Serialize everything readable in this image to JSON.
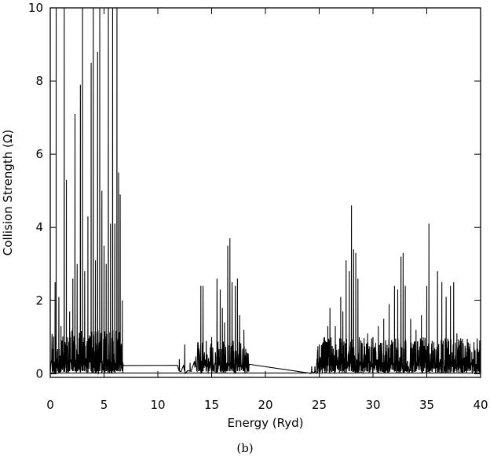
{
  "chart_data": {
    "type": "line",
    "title": "",
    "xlabel": "Energy (Ryd)",
    "ylabel": "Collision Strength (Ω)",
    "caption": "(b)",
    "xlim": [
      0,
      40
    ],
    "ylim": [
      -0.1,
      10
    ],
    "xticks": [
      0,
      5,
      10,
      15,
      20,
      25,
      30,
      35,
      40
    ],
    "yticks": [
      0,
      2,
      4,
      6,
      8,
      10
    ],
    "grid": false,
    "legend": "none",
    "line_color": "#000000",
    "baseline": 0.02,
    "clusters": [
      {
        "range": [
          0.1,
          6.8
        ],
        "density": 60,
        "base_max": 1.2
      },
      {
        "range": [
          11.8,
          13.2
        ],
        "density": 4,
        "base_max": 0.3
      },
      {
        "range": [
          13.4,
          18.5
        ],
        "density": 40,
        "base_max": 0.9
      },
      {
        "range": [
          24.0,
          24.8
        ],
        "density": 6,
        "base_max": 0.2
      },
      {
        "range": [
          24.8,
          40.0
        ],
        "density": 60,
        "base_max": 1.0
      }
    ],
    "peaks": [
      {
        "x": 0.3,
        "y": 1.0
      },
      {
        "x": 0.45,
        "y": 2.5
      },
      {
        "x": 0.55,
        "y": 10
      },
      {
        "x": 0.8,
        "y": 2.1
      },
      {
        "x": 1.0,
        "y": 1.3
      },
      {
        "x": 1.3,
        "y": 10
      },
      {
        "x": 1.5,
        "y": 5.3
      },
      {
        "x": 1.8,
        "y": 1.7
      },
      {
        "x": 2.1,
        "y": 2.6
      },
      {
        "x": 2.3,
        "y": 7.1
      },
      {
        "x": 2.5,
        "y": 3.0
      },
      {
        "x": 2.8,
        "y": 7.9
      },
      {
        "x": 3.0,
        "y": 10
      },
      {
        "x": 3.2,
        "y": 2.8
      },
      {
        "x": 3.5,
        "y": 4.3
      },
      {
        "x": 3.8,
        "y": 8.5
      },
      {
        "x": 4.0,
        "y": 10
      },
      {
        "x": 4.2,
        "y": 3.1
      },
      {
        "x": 4.4,
        "y": 8.8
      },
      {
        "x": 4.6,
        "y": 10
      },
      {
        "x": 4.8,
        "y": 5.0
      },
      {
        "x": 5.0,
        "y": 3.5
      },
      {
        "x": 5.2,
        "y": 3.0
      },
      {
        "x": 5.4,
        "y": 10
      },
      {
        "x": 5.6,
        "y": 4.1
      },
      {
        "x": 5.8,
        "y": 10
      },
      {
        "x": 6.0,
        "y": 4.1
      },
      {
        "x": 6.2,
        "y": 10
      },
      {
        "x": 6.35,
        "y": 5.5
      },
      {
        "x": 6.5,
        "y": 4.9
      },
      {
        "x": 6.7,
        "y": 2.0
      },
      {
        "x": 12.0,
        "y": 0.4
      },
      {
        "x": 12.5,
        "y": 0.8
      },
      {
        "x": 13.0,
        "y": 0.3
      },
      {
        "x": 13.8,
        "y": 0.7
      },
      {
        "x": 14.0,
        "y": 2.4
      },
      {
        "x": 14.2,
        "y": 2.4
      },
      {
        "x": 14.5,
        "y": 0.9
      },
      {
        "x": 15.0,
        "y": 1.0
      },
      {
        "x": 15.5,
        "y": 2.6
      },
      {
        "x": 15.8,
        "y": 2.3
      },
      {
        "x": 16.0,
        "y": 1.8
      },
      {
        "x": 16.2,
        "y": 1.4
      },
      {
        "x": 16.5,
        "y": 3.5
      },
      {
        "x": 16.7,
        "y": 3.7
      },
      {
        "x": 16.9,
        "y": 2.5
      },
      {
        "x": 17.2,
        "y": 2.4
      },
      {
        "x": 17.4,
        "y": 2.6
      },
      {
        "x": 17.6,
        "y": 1.6
      },
      {
        "x": 18.0,
        "y": 1.2
      },
      {
        "x": 18.3,
        "y": 0.4
      },
      {
        "x": 24.3,
        "y": 0.2
      },
      {
        "x": 24.6,
        "y": 0.2
      },
      {
        "x": 25.0,
        "y": 0.8
      },
      {
        "x": 25.5,
        "y": 1.0
      },
      {
        "x": 25.8,
        "y": 1.3
      },
      {
        "x": 26.0,
        "y": 1.8
      },
      {
        "x": 26.5,
        "y": 1.3
      },
      {
        "x": 27.0,
        "y": 2.1
      },
      {
        "x": 27.2,
        "y": 1.7
      },
      {
        "x": 27.5,
        "y": 3.1
      },
      {
        "x": 27.8,
        "y": 2.8
      },
      {
        "x": 28.0,
        "y": 4.6
      },
      {
        "x": 28.2,
        "y": 3.4
      },
      {
        "x": 28.4,
        "y": 3.3
      },
      {
        "x": 28.6,
        "y": 2.6
      },
      {
        "x": 29.0,
        "y": 0.8
      },
      {
        "x": 29.5,
        "y": 1.1
      },
      {
        "x": 30.0,
        "y": 1.0
      },
      {
        "x": 30.5,
        "y": 1.3
      },
      {
        "x": 31.0,
        "y": 1.5
      },
      {
        "x": 31.5,
        "y": 1.9
      },
      {
        "x": 32.0,
        "y": 2.4
      },
      {
        "x": 32.3,
        "y": 2.3
      },
      {
        "x": 32.6,
        "y": 3.2
      },
      {
        "x": 32.8,
        "y": 3.3
      },
      {
        "x": 33.0,
        "y": 2.4
      },
      {
        "x": 33.5,
        "y": 1.5
      },
      {
        "x": 34.0,
        "y": 1.2
      },
      {
        "x": 34.5,
        "y": 1.6
      },
      {
        "x": 35.0,
        "y": 2.4
      },
      {
        "x": 35.2,
        "y": 4.1
      },
      {
        "x": 35.5,
        "y": 0.9
      },
      {
        "x": 36.0,
        "y": 2.8
      },
      {
        "x": 36.4,
        "y": 2.5
      },
      {
        "x": 36.8,
        "y": 2.1
      },
      {
        "x": 37.2,
        "y": 2.4
      },
      {
        "x": 37.5,
        "y": 2.5
      },
      {
        "x": 37.8,
        "y": 1.1
      },
      {
        "x": 38.2,
        "y": 0.9
      },
      {
        "x": 38.6,
        "y": 0.7
      },
      {
        "x": 39.0,
        "y": 0.6
      },
      {
        "x": 39.4,
        "y": 0.6
      },
      {
        "x": 39.8,
        "y": 0.3
      }
    ]
  }
}
